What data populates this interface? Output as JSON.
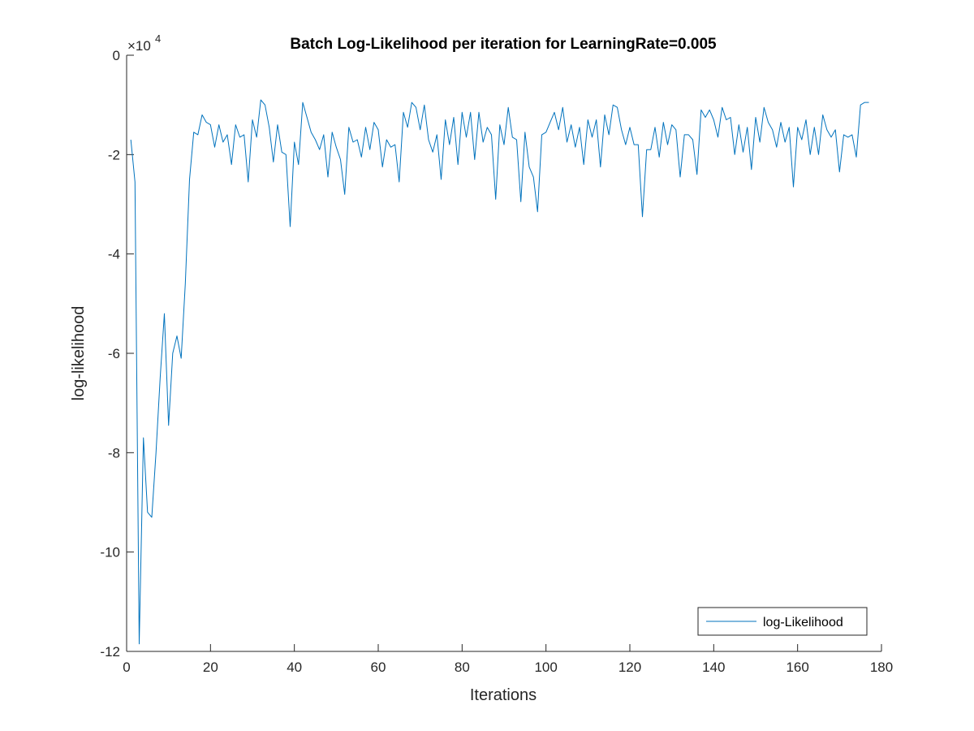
{
  "chart_data": {
    "type": "line",
    "title": "Batch Log-Likelihood per iteration for LearningRate=0.005",
    "xlabel": "Iterations",
    "ylabel": "log-likelihood",
    "xlim": [
      0,
      180
    ],
    "ylim": [
      -120000,
      0
    ],
    "x_ticks": [
      0,
      20,
      40,
      60,
      80,
      100,
      120,
      140,
      160,
      180
    ],
    "y_ticks": [
      0,
      -20000,
      -40000,
      -60000,
      -80000,
      -100000,
      -120000
    ],
    "y_tick_labels": [
      "0",
      "-2",
      "-4",
      "-6",
      "-8",
      "-10",
      "-12"
    ],
    "y_exponent_label": "×10",
    "y_exponent_power": "4",
    "grid": false,
    "legend_position": "bottom-right",
    "colors": {
      "series": "#0072BD",
      "axes": "#262626"
    },
    "series": [
      {
        "name": "log-Likelihood",
        "x": [
          1,
          2,
          3,
          4,
          5,
          6,
          7,
          8,
          9,
          10,
          11,
          12,
          13,
          14,
          15,
          16,
          17,
          18,
          19,
          20,
          21,
          22,
          23,
          24,
          25,
          26,
          27,
          28,
          29,
          30,
          31,
          32,
          33,
          34,
          35,
          36,
          37,
          38,
          39,
          40,
          41,
          42,
          43,
          44,
          45,
          46,
          47,
          48,
          49,
          50,
          51,
          52,
          53,
          54,
          55,
          56,
          57,
          58,
          59,
          60,
          61,
          62,
          63,
          64,
          65,
          66,
          67,
          68,
          69,
          70,
          71,
          72,
          73,
          74,
          75,
          76,
          77,
          78,
          79,
          80,
          81,
          82,
          83,
          84,
          85,
          86,
          87,
          88,
          89,
          90,
          91,
          92,
          93,
          94,
          95,
          96,
          97,
          98,
          99,
          100,
          101,
          102,
          103,
          104,
          105,
          106,
          107,
          108,
          109,
          110,
          111,
          112,
          113,
          114,
          115,
          116,
          117,
          118,
          119,
          120,
          121,
          122,
          123,
          124,
          125,
          126,
          127,
          128,
          129,
          130,
          131,
          132,
          133,
          134,
          135,
          136,
          137,
          138,
          139,
          140,
          141,
          142,
          143,
          144,
          145,
          146,
          147,
          148,
          149,
          150,
          151,
          152,
          153,
          154,
          155,
          156,
          157,
          158,
          159,
          160,
          161,
          162,
          163,
          164,
          165,
          166,
          167,
          168,
          169,
          170,
          171,
          172,
          173,
          174,
          175,
          176,
          177
        ],
        "values": [
          -17000,
          -25500,
          -118500,
          -77000,
          -92000,
          -93000,
          -80000,
          -65000,
          -52000,
          -74500,
          -60000,
          -56500,
          -61000,
          -46000,
          -25000,
          -15500,
          -16000,
          -12000,
          -13500,
          -14000,
          -18500,
          -14000,
          -17500,
          -16000,
          -22000,
          -14000,
          -16500,
          -16000,
          -25500,
          -13000,
          -16500,
          -9000,
          -10000,
          -14500,
          -21500,
          -14000,
          -19500,
          -20000,
          -34500,
          -17500,
          -22000,
          -9500,
          -12500,
          -15500,
          -17000,
          -19000,
          -16000,
          -24500,
          -15500,
          -18500,
          -21000,
          -28000,
          -14500,
          -17500,
          -17000,
          -20500,
          -14500,
          -19000,
          -13500,
          -15000,
          -22500,
          -17000,
          -18500,
          -18000,
          -25500,
          -11500,
          -14500,
          -9500,
          -10500,
          -15000,
          -10000,
          -17000,
          -19500,
          -16000,
          -25000,
          -13000,
          -18000,
          -12500,
          -22000,
          -11500,
          -16500,
          -11500,
          -21000,
          -11500,
          -17500,
          -14500,
          -16000,
          -29000,
          -14000,
          -18000,
          -10500,
          -16500,
          -17000,
          -29500,
          -15500,
          -22500,
          -24500,
          -31500,
          -16000,
          -15500,
          -13500,
          -11500,
          -15000,
          -10500,
          -17500,
          -14000,
          -18500,
          -14500,
          -22000,
          -13000,
          -16500,
          -13000,
          -22500,
          -12000,
          -16000,
          -10000,
          -10500,
          -15000,
          -18000,
          -14500,
          -18000,
          -18000,
          -32500,
          -19000,
          -19000,
          -14500,
          -20500,
          -13500,
          -18000,
          -14000,
          -15000,
          -24500,
          -16000,
          -16000,
          -17000,
          -24000,
          -11000,
          -12500,
          -11000,
          -13000,
          -16500,
          -10500,
          -13000,
          -12500,
          -20000,
          -14000,
          -19500,
          -14500,
          -23000,
          -12500,
          -17500,
          -10500,
          -13500,
          -15000,
          -18500,
          -13500,
          -17500,
          -14500,
          -26500,
          -14500,
          -17000,
          -13000,
          -20000,
          -14500,
          -20000,
          -12000,
          -15000,
          -16500,
          -15000,
          -23500,
          -16000,
          -16500,
          -16000,
          -20500,
          -10000,
          -9500,
          -9500
        ]
      }
    ]
  }
}
